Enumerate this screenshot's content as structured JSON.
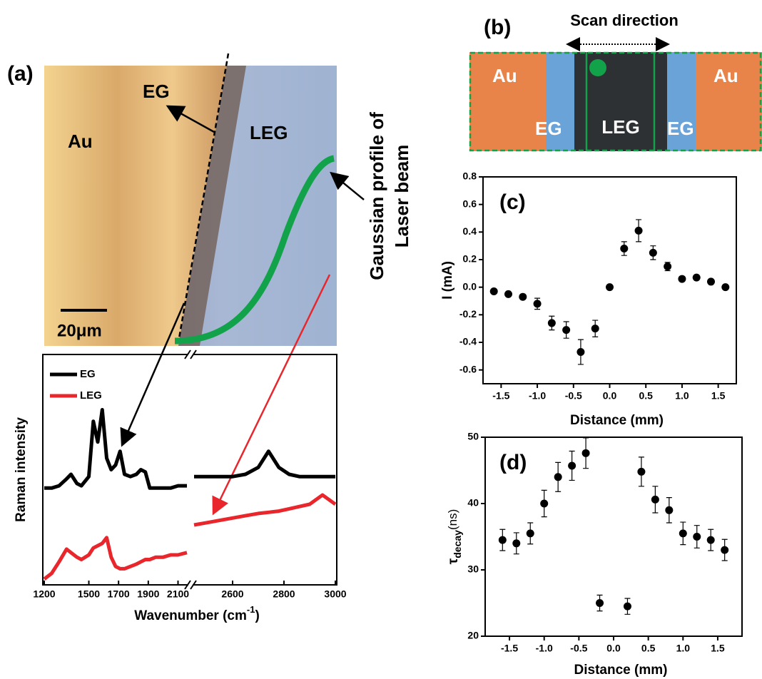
{
  "panel_a_image": {
    "panel_label": "(a)",
    "labels": [
      "EG",
      "Au",
      "LEG"
    ],
    "scale_bar": "20μm",
    "beam_note": [
      "Gaussian profile of",
      "Laser beam"
    ]
  },
  "panel_b": {
    "panel_label": "(b)",
    "scan_label": "Scan direction",
    "regions": [
      "Au",
      "EG",
      "LEG",
      "EG",
      "Au"
    ]
  },
  "chart_data": [
    {
      "type": "line",
      "ylabel": "Raman intensity",
      "xlabel": "Wavenumber (cm",
      "xlabel_sup": "-1",
      "xlabel_end": ")",
      "x_segments": [
        {
          "xlim": [
            1200,
            2160
          ],
          "xticks": [
            1200,
            1500,
            1700,
            1900,
            2100
          ]
        },
        {
          "xlim": [
            2450,
            3000
          ],
          "xticks": [
            2600,
            2800,
            3000
          ]
        }
      ],
      "ylim": [
        0,
        100
      ],
      "x": [
        1200,
        1250,
        1300,
        1350,
        1380,
        1420,
        1450,
        1500,
        1530,
        1560,
        1590,
        1620,
        1650,
        1680,
        1710,
        1740,
        1780,
        1820,
        1850,
        1880,
        1910,
        1950,
        2000,
        2050,
        2100,
        2160,
        2300,
        2450,
        2500,
        2550,
        2600,
        2650,
        2700,
        2740,
        2780,
        2820,
        2860,
        2900,
        2950,
        3000
      ],
      "series": [
        {
          "name": "EG",
          "color": "#000000",
          "values": [
            42,
            42,
            43,
            46,
            48,
            44,
            43,
            47,
            71,
            62,
            76,
            55,
            50,
            52,
            58,
            48,
            47,
            48,
            50,
            49,
            42,
            42,
            42,
            42,
            43,
            43,
            null,
            47,
            47,
            47,
            47,
            48,
            51,
            58,
            51,
            48,
            47,
            47,
            47,
            47
          ]
        },
        {
          "name": "LEG",
          "color": "#e8262b",
          "values": [
            2.5,
            5,
            10,
            15.5,
            14,
            12,
            11,
            13,
            16,
            17,
            18,
            20.5,
            12,
            8,
            7,
            7,
            8,
            9,
            10,
            11,
            11,
            12,
            12,
            13,
            13,
            14,
            null,
            26,
            27,
            28,
            29,
            30,
            31,
            31.5,
            32,
            33,
            34,
            35,
            39,
            35
          ]
        }
      ]
    },
    {
      "type": "scatter",
      "panel_label": "(c)",
      "xlabel": "Distance (mm)",
      "ylabel": "I (mA)",
      "color": "#000000",
      "x": [
        -1.6,
        -1.4,
        -1.2,
        -1.0,
        -0.8,
        -0.6,
        -0.4,
        -0.2,
        0,
        0.2,
        0.4,
        0.6,
        0.8,
        1.0,
        1.2,
        1.4,
        1.6
      ],
      "values": [
        -0.03,
        -0.05,
        -0.07,
        -0.12,
        -0.26,
        -0.31,
        -0.47,
        -0.3,
        0.0,
        0.28,
        0.41,
        0.25,
        0.15,
        0.06,
        0.07,
        0.04,
        0.0
      ],
      "errors": [
        0,
        0,
        0,
        0.04,
        0.05,
        0.06,
        0.09,
        0.06,
        0,
        0.05,
        0.08,
        0.05,
        0.03,
        0,
        0,
        0,
        0
      ],
      "xlim": [
        -1.75,
        1.75
      ],
      "ylim": [
        -0.7,
        0.8
      ],
      "xticks": [
        -1.5,
        {
          "value": -1.0,
          "label": "-1.0"
        },
        -0.5,
        {
          "value": 0,
          "label": "0.0"
        },
        0.5,
        {
          "value": 1.0,
          "label": "1.0"
        },
        1.5
      ],
      "yticks": [
        0.8,
        0.6,
        0.4,
        0.2,
        {
          "value": 0,
          "label": "0.0"
        },
        -0.2,
        -0.4,
        -0.6
      ]
    },
    {
      "type": "scatter",
      "panel_label": "(d)",
      "xlabel": "Distance (mm)",
      "ylabel": "τ",
      "ylabel_sub": "decay",
      "ylabel_unit": "(ns)",
      "color": "#000000",
      "x": [
        -1.6,
        -1.4,
        -1.2,
        -1.0,
        -0.8,
        -0.6,
        -0.4,
        -0.2,
        0.2,
        0.4,
        0.6,
        0.8,
        1.0,
        1.2,
        1.4,
        1.6
      ],
      "values": [
        34.5,
        34,
        35.5,
        40,
        44,
        45.7,
        47.6,
        25,
        24.5,
        44.8,
        40.6,
        39,
        35.5,
        35,
        34.5,
        33
      ],
      "errors": [
        1.6,
        1.6,
        1.6,
        2,
        2.2,
        2.2,
        2.3,
        1.2,
        1.2,
        2.2,
        2,
        1.9,
        1.7,
        1.7,
        1.6,
        1.6
      ],
      "xlim": [
        -1.85,
        1.85
      ],
      "ylim": [
        20,
        50
      ],
      "xticks": [
        -1.5,
        {
          "value": -1.0,
          "label": "-1.0"
        },
        -0.5,
        {
          "value": 0,
          "label": "0.0"
        },
        0.5,
        {
          "value": 1.0,
          "label": "1.0"
        },
        1.5
      ],
      "yticks": [
        20,
        30,
        40,
        50
      ]
    }
  ]
}
